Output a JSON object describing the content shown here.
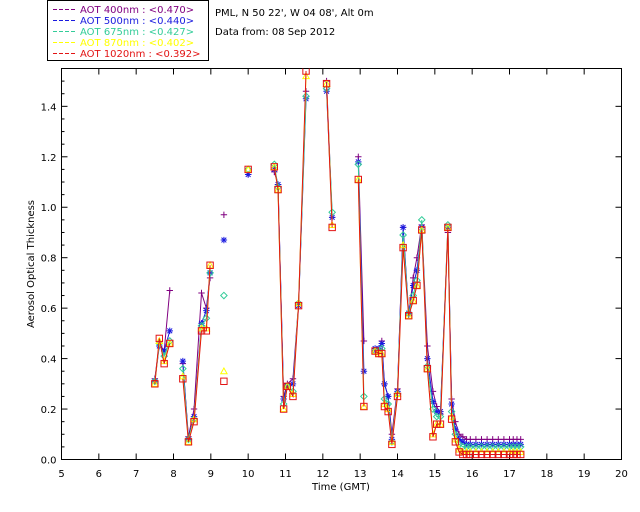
{
  "chart_data": {
    "type": "line",
    "title": "",
    "info_lines": [
      "PML, N 50 22', W 04 08', Alt 0m",
      "Data from: 08 Sep 2012"
    ],
    "xlabel": "Time (GMT)",
    "ylabel": "Aerosol Optical Thickness",
    "xlim": [
      5,
      20
    ],
    "ylim": [
      0,
      1.55
    ],
    "xticks": [
      "5",
      "6",
      "7",
      "8",
      "9",
      "10",
      "11",
      "12",
      "13",
      "14",
      "15",
      "16",
      "17",
      "18",
      "19",
      "20"
    ],
    "yticks": [
      "0.0",
      "0.2",
      "0.4",
      "0.6",
      "0.8",
      "1.0",
      "1.2",
      "1.4"
    ],
    "series": [
      {
        "name": "AOT  400nm : <0.470>",
        "color": "#800080",
        "marker": "plus",
        "points": [
          [
            7.5,
            0.32
          ],
          [
            7.62,
            0.46
          ],
          [
            7.75,
            0.43
          ],
          [
            7.9,
            0.67
          ],
          null,
          [
            8.25,
            0.38
          ],
          [
            8.4,
            0.09
          ],
          [
            8.55,
            0.2
          ],
          [
            8.75,
            0.66
          ],
          [
            8.88,
            0.6
          ],
          [
            8.98,
            0.72
          ],
          null,
          [
            9.35,
            0.97
          ],
          null,
          [
            10.0,
            1.13
          ],
          null,
          [
            10.7,
            1.14
          ],
          [
            10.8,
            1.09
          ],
          [
            10.95,
            0.25
          ],
          [
            11.05,
            0.3
          ],
          [
            11.2,
            0.32
          ],
          [
            11.35,
            0.62
          ],
          [
            11.55,
            1.46
          ],
          null,
          [
            12.1,
            1.5
          ],
          [
            12.25,
            0.96
          ],
          null,
          [
            12.95,
            1.2
          ],
          [
            13.1,
            0.47
          ],
          null,
          [
            13.4,
            0.43
          ],
          [
            13.5,
            0.43
          ],
          [
            13.58,
            0.47
          ],
          [
            13.65,
            0.3
          ],
          [
            13.75,
            0.25
          ],
          [
            13.85,
            0.1
          ],
          [
            14.0,
            0.28
          ],
          [
            14.15,
            0.92
          ],
          [
            14.3,
            0.57
          ],
          [
            14.42,
            0.72
          ],
          [
            14.52,
            0.8
          ],
          [
            14.65,
            0.93
          ],
          [
            14.8,
            0.45
          ],
          [
            14.95,
            0.27
          ],
          [
            15.05,
            0.21
          ],
          [
            15.15,
            0.18
          ],
          [
            15.35,
            0.9
          ],
          [
            15.45,
            0.24
          ],
          [
            15.55,
            0.15
          ],
          [
            15.65,
            0.1
          ],
          [
            15.75,
            0.09
          ],
          [
            15.85,
            0.08
          ],
          [
            15.95,
            0.08
          ],
          [
            16.1,
            0.08
          ],
          [
            16.25,
            0.08
          ],
          [
            16.4,
            0.08
          ],
          [
            16.55,
            0.08
          ],
          [
            16.7,
            0.08
          ],
          [
            16.85,
            0.08
          ],
          [
            17.0,
            0.08
          ],
          [
            17.1,
            0.08
          ],
          [
            17.2,
            0.08
          ],
          [
            17.3,
            0.08
          ]
        ]
      },
      {
        "name": "AOT  500nm : <0.440>",
        "color": "#1a1adf",
        "marker": "star",
        "points": [
          [
            7.5,
            0.31
          ],
          [
            7.62,
            0.45
          ],
          [
            7.75,
            0.43
          ],
          [
            7.9,
            0.51
          ],
          null,
          [
            8.25,
            0.39
          ],
          [
            8.4,
            0.08
          ],
          [
            8.55,
            0.17
          ],
          [
            8.75,
            0.54
          ],
          [
            8.88,
            0.59
          ],
          [
            8.98,
            0.74
          ],
          null,
          [
            9.35,
            0.87
          ],
          null,
          [
            10.0,
            1.13
          ],
          null,
          [
            10.7,
            1.15
          ],
          [
            10.8,
            1.09
          ],
          [
            10.95,
            0.24
          ],
          [
            11.05,
            0.29
          ],
          [
            11.2,
            0.3
          ],
          [
            11.35,
            0.61
          ],
          [
            11.55,
            1.43
          ],
          null,
          [
            12.1,
            1.46
          ],
          [
            12.25,
            0.96
          ],
          null,
          [
            12.95,
            1.18
          ],
          [
            13.1,
            0.35
          ],
          null,
          [
            13.4,
            0.44
          ],
          [
            13.5,
            0.44
          ],
          [
            13.58,
            0.46
          ],
          [
            13.65,
            0.3
          ],
          [
            13.75,
            0.25
          ],
          [
            13.85,
            0.08
          ],
          [
            14.0,
            0.27
          ],
          [
            14.15,
            0.92
          ],
          [
            14.3,
            0.58
          ],
          [
            14.42,
            0.69
          ],
          [
            14.52,
            0.75
          ],
          [
            14.65,
            0.92
          ],
          [
            14.8,
            0.4
          ],
          [
            14.95,
            0.23
          ],
          [
            15.05,
            0.19
          ],
          [
            15.15,
            0.19
          ],
          [
            15.35,
            0.92
          ],
          [
            15.45,
            0.22
          ],
          [
            15.55,
            0.12
          ],
          [
            15.65,
            0.08
          ],
          [
            15.75,
            0.07
          ],
          [
            15.85,
            0.06
          ],
          [
            15.95,
            0.06
          ],
          [
            16.1,
            0.06
          ],
          [
            16.25,
            0.06
          ],
          [
            16.4,
            0.06
          ],
          [
            16.55,
            0.06
          ],
          [
            16.7,
            0.06
          ],
          [
            16.85,
            0.06
          ],
          [
            17.0,
            0.06
          ],
          [
            17.1,
            0.06
          ],
          [
            17.2,
            0.06
          ],
          [
            17.3,
            0.06
          ]
        ]
      },
      {
        "name": "AOT  675nm : <0.427>",
        "color": "#33cc99",
        "marker": "diamond",
        "points": [
          [
            7.5,
            0.31
          ],
          [
            7.62,
            0.46
          ],
          [
            7.75,
            0.41
          ],
          [
            7.9,
            0.47
          ],
          null,
          [
            8.25,
            0.36
          ],
          [
            8.4,
            0.08
          ],
          [
            8.55,
            0.16
          ],
          [
            8.75,
            0.53
          ],
          [
            8.88,
            0.56
          ],
          [
            8.98,
            0.74
          ],
          null,
          [
            9.35,
            0.65
          ],
          null,
          [
            10.0,
            1.15
          ],
          null,
          [
            10.7,
            1.17
          ],
          [
            10.8,
            1.08
          ],
          [
            10.95,
            0.22
          ],
          [
            11.05,
            0.29
          ],
          [
            11.2,
            0.27
          ],
          [
            11.35,
            0.62
          ],
          [
            11.55,
            1.44
          ],
          null,
          [
            12.1,
            1.47
          ],
          [
            12.25,
            0.98
          ],
          null,
          [
            12.95,
            1.17
          ],
          [
            13.1,
            0.25
          ],
          null,
          [
            13.4,
            0.43
          ],
          [
            13.5,
            0.43
          ],
          [
            13.58,
            0.44
          ],
          [
            13.65,
            0.24
          ],
          [
            13.75,
            0.22
          ],
          [
            13.85,
            0.07
          ],
          [
            14.0,
            0.26
          ],
          [
            14.15,
            0.89
          ],
          [
            14.3,
            0.58
          ],
          [
            14.42,
            0.65
          ],
          [
            14.52,
            0.71
          ],
          [
            14.65,
            0.95
          ],
          [
            14.8,
            0.37
          ],
          [
            14.95,
            0.2
          ],
          [
            15.05,
            0.17
          ],
          [
            15.15,
            0.17
          ],
          [
            15.35,
            0.93
          ],
          [
            15.45,
            0.19
          ],
          [
            15.55,
            0.1
          ],
          [
            15.65,
            0.06
          ],
          [
            15.75,
            0.05
          ],
          [
            15.85,
            0.05
          ],
          [
            15.95,
            0.05
          ],
          [
            16.1,
            0.05
          ],
          [
            16.25,
            0.05
          ],
          [
            16.4,
            0.05
          ],
          [
            16.55,
            0.05
          ],
          [
            16.7,
            0.05
          ],
          [
            16.85,
            0.05
          ],
          [
            17.0,
            0.05
          ],
          [
            17.1,
            0.05
          ],
          [
            17.2,
            0.05
          ],
          [
            17.3,
            0.05
          ]
        ]
      },
      {
        "name": "AOT  870nm : <0.402>",
        "color": "#ffff00",
        "marker": "triangle",
        "points": [
          [
            7.5,
            0.3
          ],
          [
            7.62,
            0.47
          ],
          [
            7.75,
            0.39
          ],
          [
            7.9,
            0.46
          ],
          null,
          [
            8.25,
            0.33
          ],
          [
            8.4,
            0.07
          ],
          [
            8.55,
            0.16
          ],
          [
            8.75,
            0.52
          ],
          [
            8.88,
            0.52
          ],
          [
            8.98,
            0.77
          ],
          null,
          [
            9.35,
            0.35
          ],
          null,
          [
            10.0,
            1.15
          ],
          null,
          [
            10.7,
            1.16
          ],
          [
            10.8,
            1.07
          ],
          [
            10.95,
            0.2
          ],
          [
            11.05,
            0.29
          ],
          [
            11.2,
            0.26
          ],
          [
            11.35,
            0.62
          ],
          [
            11.55,
            1.52
          ],
          null,
          [
            12.1,
            1.49
          ],
          [
            12.25,
            0.93
          ],
          null,
          [
            12.95,
            1.11
          ],
          [
            13.1,
            0.21
          ],
          null,
          [
            13.4,
            0.43
          ],
          [
            13.5,
            0.42
          ],
          [
            13.58,
            0.42
          ],
          [
            13.65,
            0.22
          ],
          [
            13.75,
            0.2
          ],
          [
            13.85,
            0.07
          ],
          [
            14.0,
            0.26
          ],
          [
            14.15,
            0.85
          ],
          [
            14.3,
            0.57
          ],
          [
            14.42,
            0.63
          ],
          [
            14.52,
            0.69
          ],
          [
            14.65,
            0.91
          ],
          [
            14.8,
            0.36
          ],
          [
            14.95,
            0.1
          ],
          [
            15.05,
            0.14
          ],
          [
            15.15,
            0.14
          ],
          [
            15.35,
            0.92
          ],
          [
            15.45,
            0.17
          ],
          [
            15.55,
            0.08
          ],
          [
            15.65,
            0.04
          ],
          [
            15.75,
            0.03
          ],
          [
            15.85,
            0.03
          ],
          [
            15.95,
            0.03
          ],
          [
            16.1,
            0.03
          ],
          [
            16.25,
            0.03
          ],
          [
            16.4,
            0.03
          ],
          [
            16.55,
            0.03
          ],
          [
            16.7,
            0.03
          ],
          [
            16.85,
            0.03
          ],
          [
            17.0,
            0.03
          ],
          [
            17.1,
            0.03
          ],
          [
            17.2,
            0.03
          ],
          [
            17.3,
            0.03
          ]
        ]
      },
      {
        "name": "AOT 1020nm : <0.392>",
        "color": "#e21414",
        "marker": "square",
        "points": [
          [
            7.5,
            0.3
          ],
          [
            7.62,
            0.48
          ],
          [
            7.75,
            0.38
          ],
          [
            7.9,
            0.46
          ],
          null,
          [
            8.25,
            0.32
          ],
          [
            8.4,
            0.07
          ],
          [
            8.55,
            0.15
          ],
          [
            8.75,
            0.51
          ],
          [
            8.88,
            0.51
          ],
          [
            8.98,
            0.77
          ],
          null,
          [
            9.35,
            0.31
          ],
          null,
          [
            10.0,
            1.15
          ],
          null,
          [
            10.7,
            1.16
          ],
          [
            10.8,
            1.07
          ],
          [
            10.95,
            0.2
          ],
          [
            11.05,
            0.29
          ],
          [
            11.2,
            0.25
          ],
          [
            11.35,
            0.61
          ],
          [
            11.55,
            1.54
          ],
          null,
          [
            12.1,
            1.49
          ],
          [
            12.25,
            0.92
          ],
          null,
          [
            12.95,
            1.11
          ],
          [
            13.1,
            0.21
          ],
          null,
          [
            13.4,
            0.43
          ],
          [
            13.5,
            0.42
          ],
          [
            13.58,
            0.42
          ],
          [
            13.65,
            0.21
          ],
          [
            13.75,
            0.19
          ],
          [
            13.85,
            0.06
          ],
          [
            14.0,
            0.25
          ],
          [
            14.15,
            0.84
          ],
          [
            14.3,
            0.57
          ],
          [
            14.42,
            0.63
          ],
          [
            14.52,
            0.69
          ],
          [
            14.65,
            0.91
          ],
          [
            14.8,
            0.36
          ],
          [
            14.95,
            0.09
          ],
          [
            15.05,
            0.14
          ],
          [
            15.15,
            0.14
          ],
          [
            15.35,
            0.92
          ],
          [
            15.45,
            0.16
          ],
          [
            15.55,
            0.07
          ],
          [
            15.65,
            0.03
          ],
          [
            15.75,
            0.02
          ],
          [
            15.85,
            0.02
          ],
          [
            15.95,
            0.02
          ],
          [
            16.1,
            0.02
          ],
          [
            16.25,
            0.02
          ],
          [
            16.4,
            0.02
          ],
          [
            16.55,
            0.02
          ],
          [
            16.7,
            0.02
          ],
          [
            16.85,
            0.02
          ],
          [
            17.0,
            0.02
          ],
          [
            17.1,
            0.02
          ],
          [
            17.2,
            0.02
          ],
          [
            17.3,
            0.02
          ]
        ]
      }
    ]
  }
}
